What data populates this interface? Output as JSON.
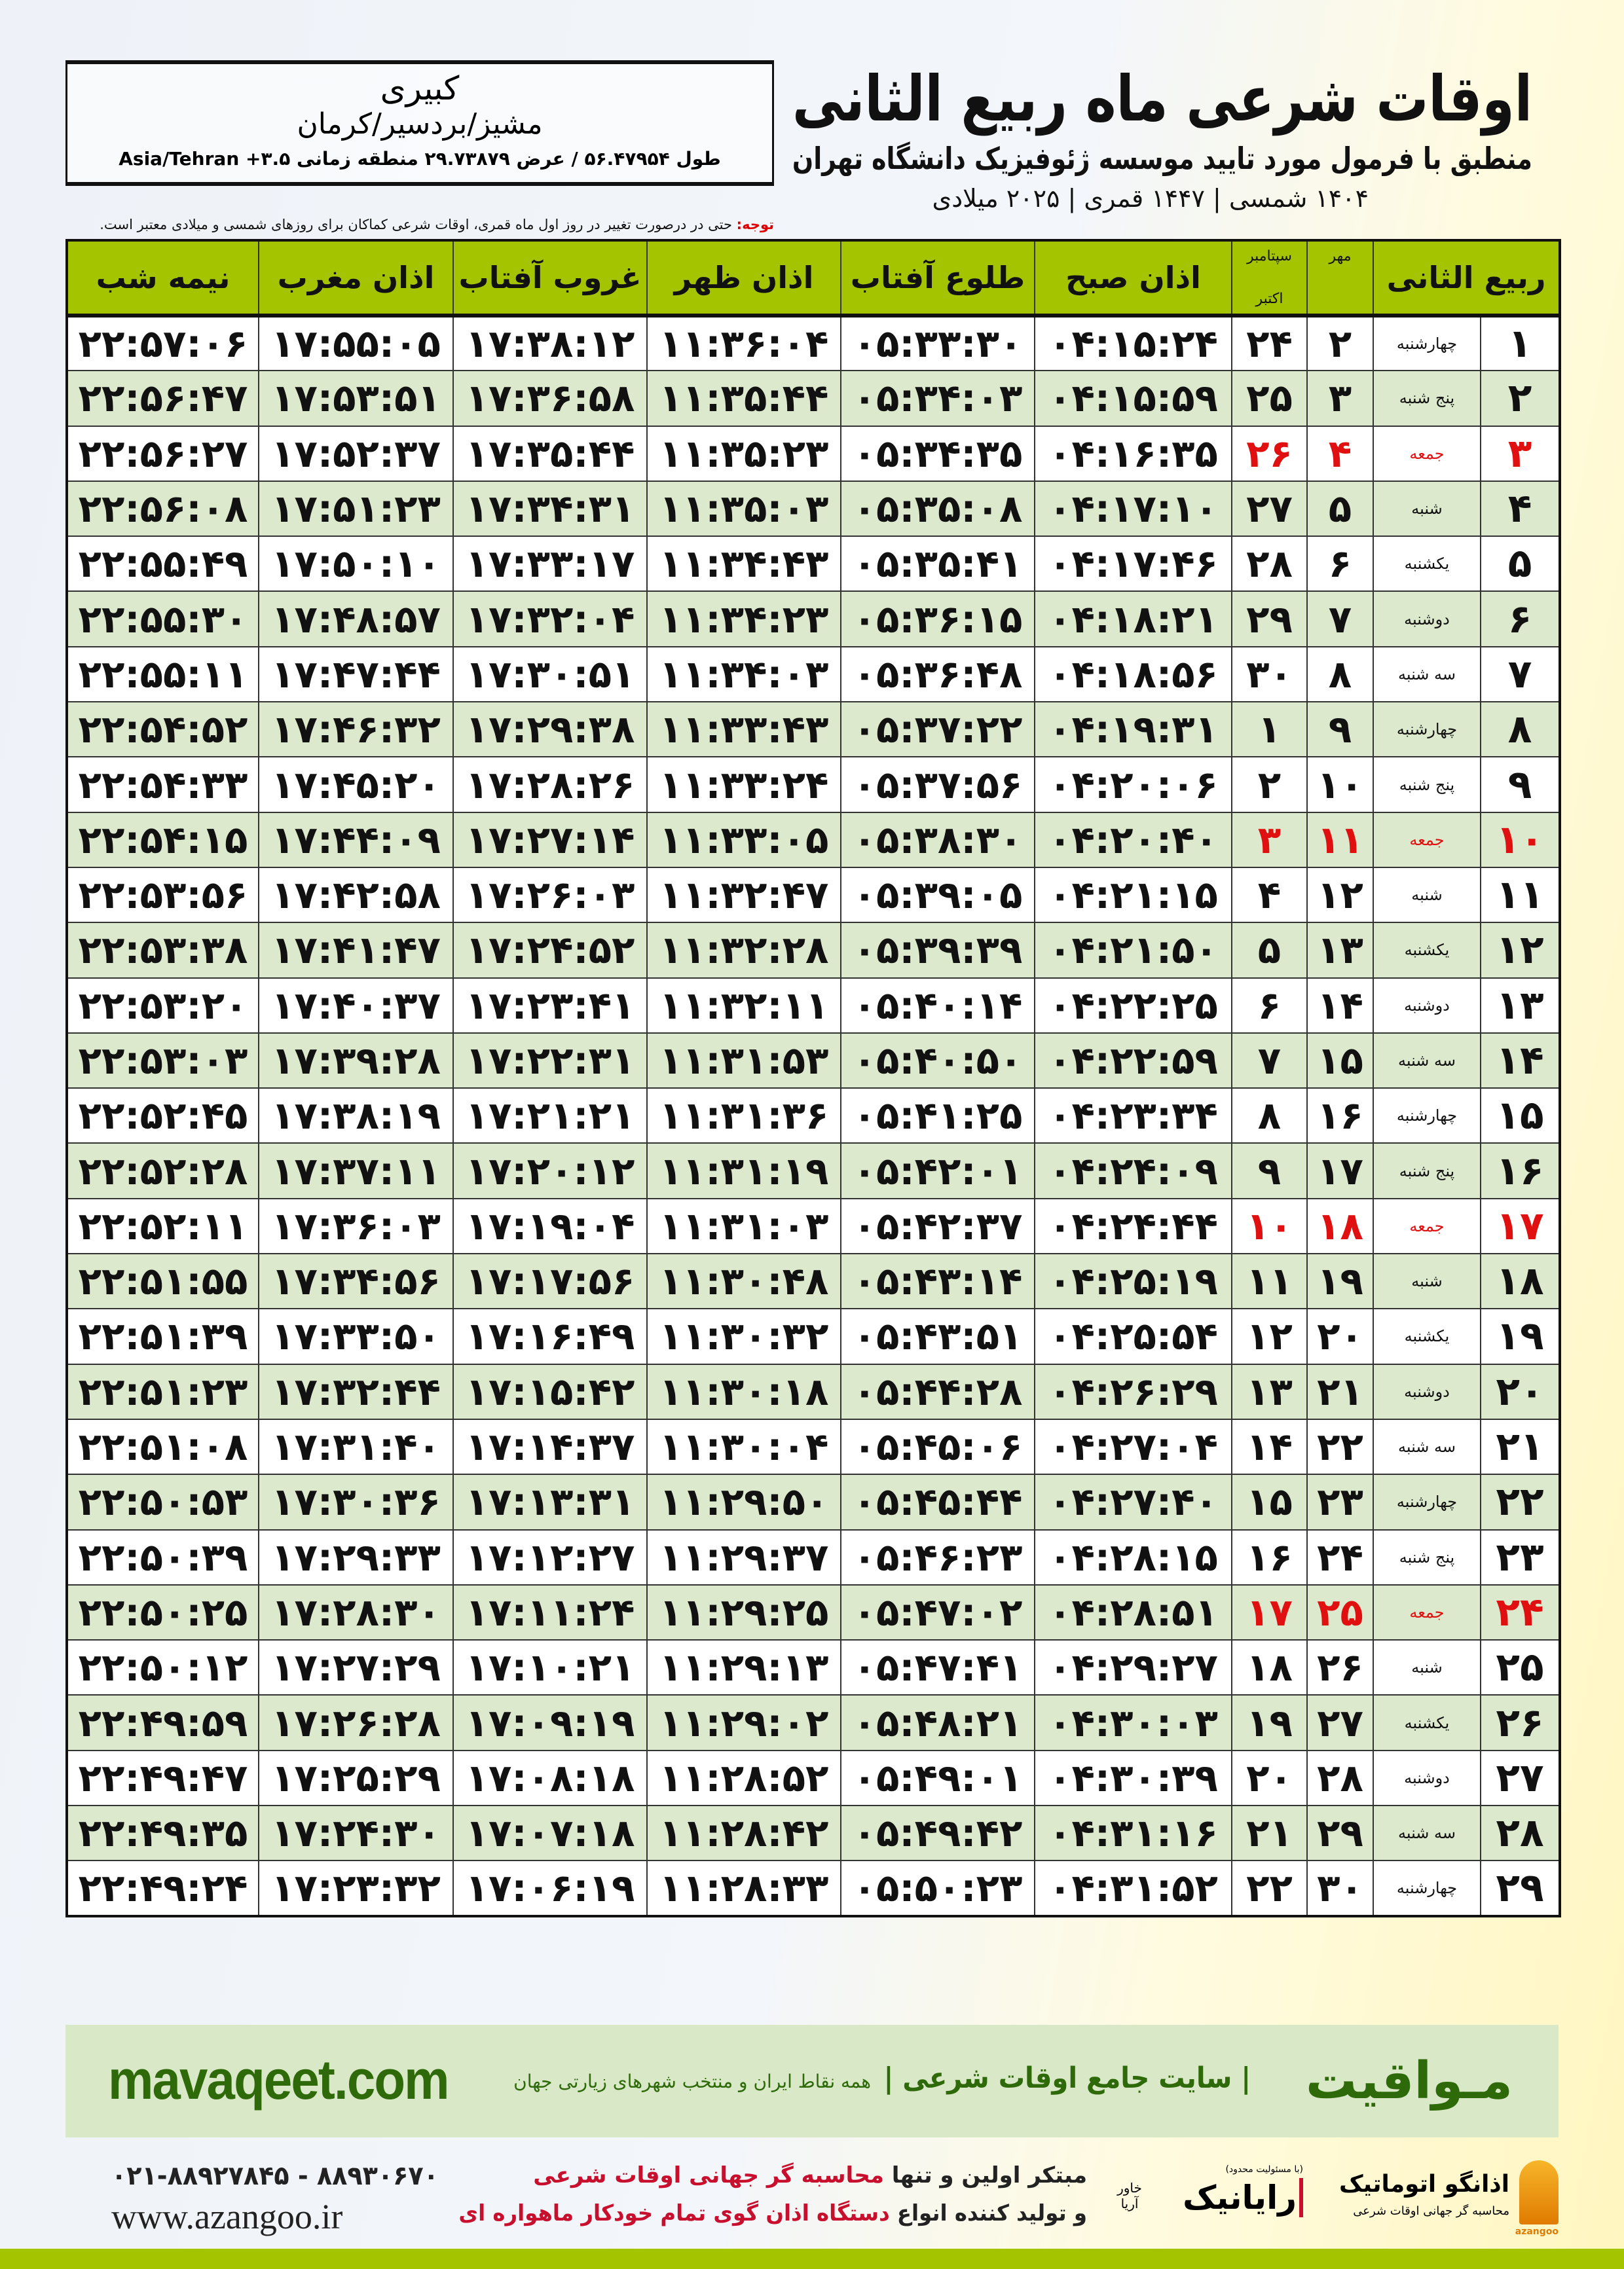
{
  "header": {
    "title": "اوقات شرعی ماه ربیع الثانی",
    "subtitle": "منطبق با فرمول مورد تایید موسسه ژئوفیزیک دانشگاه تهران",
    "dates": "۱۴۰۴ شمسی | ۱۴۴۷ قمری | ۲۰۲۵ میلادی"
  },
  "location": {
    "city": "کبیری",
    "region": "مشیز/بردسیر/کرمان",
    "coords": "طول ۵۶.۴۷۹۵۴ / عرض ۲۹.۷۳۸۷۹ منطقه زمانی ۳.۵+ Asia/Tehran"
  },
  "note": {
    "label": "توجه:",
    "text": " حتی در درصورت تغییر در روز اول ماه قمری، اوقات شرعی کماکان برای روزهای شمسی و میلادی معتبر است."
  },
  "table": {
    "headers": {
      "day": "ربیع الثانی",
      "mehr": "مهر",
      "greg1": "سپتامبر",
      "greg2": "اکتبر",
      "fajr": "اذان صبح",
      "sunrise": "طلوع آفتاب",
      "dhuhr": "اذان ظهر",
      "sunset": "غروب آفتاب",
      "maghrib": "اذان مغرب",
      "midnight": "نیمه شب"
    },
    "rows": [
      {
        "day": "۱",
        "weekday": "چهارشنبه",
        "mehr": "۲",
        "greg": "۲۴",
        "fajr": "۰۴:۱۵:۲۴",
        "sunrise": "۰۵:۳۳:۳۰",
        "dhuhr": "۱۱:۳۶:۰۴",
        "sunset": "۱۷:۳۸:۱۲",
        "maghrib": "۱۷:۵۵:۰۵",
        "midnight": "۲۲:۵۷:۰۶",
        "friday": false
      },
      {
        "day": "۲",
        "weekday": "پنج شنبه",
        "mehr": "۳",
        "greg": "۲۵",
        "fajr": "۰۴:۱۵:۵۹",
        "sunrise": "۰۵:۳۴:۰۳",
        "dhuhr": "۱۱:۳۵:۴۴",
        "sunset": "۱۷:۳۶:۵۸",
        "maghrib": "۱۷:۵۳:۵۱",
        "midnight": "۲۲:۵۶:۴۷",
        "friday": false
      },
      {
        "day": "۳",
        "weekday": "جمعه",
        "mehr": "۴",
        "greg": "۲۶",
        "fajr": "۰۴:۱۶:۳۵",
        "sunrise": "۰۵:۳۴:۳۵",
        "dhuhr": "۱۱:۳۵:۲۳",
        "sunset": "۱۷:۳۵:۴۴",
        "maghrib": "۱۷:۵۲:۳۷",
        "midnight": "۲۲:۵۶:۲۷",
        "friday": true
      },
      {
        "day": "۴",
        "weekday": "شنبه",
        "mehr": "۵",
        "greg": "۲۷",
        "fajr": "۰۴:۱۷:۱۰",
        "sunrise": "۰۵:۳۵:۰۸",
        "dhuhr": "۱۱:۳۵:۰۳",
        "sunset": "۱۷:۳۴:۳۱",
        "maghrib": "۱۷:۵۱:۲۳",
        "midnight": "۲۲:۵۶:۰۸",
        "friday": false
      },
      {
        "day": "۵",
        "weekday": "یکشنبه",
        "mehr": "۶",
        "greg": "۲۸",
        "fajr": "۰۴:۱۷:۴۶",
        "sunrise": "۰۵:۳۵:۴۱",
        "dhuhr": "۱۱:۳۴:۴۳",
        "sunset": "۱۷:۳۳:۱۷",
        "maghrib": "۱۷:۵۰:۱۰",
        "midnight": "۲۲:۵۵:۴۹",
        "friday": false
      },
      {
        "day": "۶",
        "weekday": "دوشنبه",
        "mehr": "۷",
        "greg": "۲۹",
        "fajr": "۰۴:۱۸:۲۱",
        "sunrise": "۰۵:۳۶:۱۵",
        "dhuhr": "۱۱:۳۴:۲۳",
        "sunset": "۱۷:۳۲:۰۴",
        "maghrib": "۱۷:۴۸:۵۷",
        "midnight": "۲۲:۵۵:۳۰",
        "friday": false
      },
      {
        "day": "۷",
        "weekday": "سه شنبه",
        "mehr": "۸",
        "greg": "۳۰",
        "fajr": "۰۴:۱۸:۵۶",
        "sunrise": "۰۵:۳۶:۴۸",
        "dhuhr": "۱۱:۳۴:۰۳",
        "sunset": "۱۷:۳۰:۵۱",
        "maghrib": "۱۷:۴۷:۴۴",
        "midnight": "۲۲:۵۵:۱۱",
        "friday": false
      },
      {
        "day": "۸",
        "weekday": "چهارشنبه",
        "mehr": "۹",
        "greg": "۱",
        "fajr": "۰۴:۱۹:۳۱",
        "sunrise": "۰۵:۳۷:۲۲",
        "dhuhr": "۱۱:۳۳:۴۳",
        "sunset": "۱۷:۲۹:۳۸",
        "maghrib": "۱۷:۴۶:۳۲",
        "midnight": "۲۲:۵۴:۵۲",
        "friday": false
      },
      {
        "day": "۹",
        "weekday": "پنج شنبه",
        "mehr": "۱۰",
        "greg": "۲",
        "fajr": "۰۴:۲۰:۰۶",
        "sunrise": "۰۵:۳۷:۵۶",
        "dhuhr": "۱۱:۳۳:۲۴",
        "sunset": "۱۷:۲۸:۲۶",
        "maghrib": "۱۷:۴۵:۲۰",
        "midnight": "۲۲:۵۴:۳۳",
        "friday": false
      },
      {
        "day": "۱۰",
        "weekday": "جمعه",
        "mehr": "۱۱",
        "greg": "۳",
        "fajr": "۰۴:۲۰:۴۰",
        "sunrise": "۰۵:۳۸:۳۰",
        "dhuhr": "۱۱:۳۳:۰۵",
        "sunset": "۱۷:۲۷:۱۴",
        "maghrib": "۱۷:۴۴:۰۹",
        "midnight": "۲۲:۵۴:۱۵",
        "friday": true
      },
      {
        "day": "۱۱",
        "weekday": "شنبه",
        "mehr": "۱۲",
        "greg": "۴",
        "fajr": "۰۴:۲۱:۱۵",
        "sunrise": "۰۵:۳۹:۰۵",
        "dhuhr": "۱۱:۳۲:۴۷",
        "sunset": "۱۷:۲۶:۰۳",
        "maghrib": "۱۷:۴۲:۵۸",
        "midnight": "۲۲:۵۳:۵۶",
        "friday": false
      },
      {
        "day": "۱۲",
        "weekday": "یکشنبه",
        "mehr": "۱۳",
        "greg": "۵",
        "fajr": "۰۴:۲۱:۵۰",
        "sunrise": "۰۵:۳۹:۳۹",
        "dhuhr": "۱۱:۳۲:۲۸",
        "sunset": "۱۷:۲۴:۵۲",
        "maghrib": "۱۷:۴۱:۴۷",
        "midnight": "۲۲:۵۳:۳۸",
        "friday": false
      },
      {
        "day": "۱۳",
        "weekday": "دوشنبه",
        "mehr": "۱۴",
        "greg": "۶",
        "fajr": "۰۴:۲۲:۲۵",
        "sunrise": "۰۵:۴۰:۱۴",
        "dhuhr": "۱۱:۳۲:۱۱",
        "sunset": "۱۷:۲۳:۴۱",
        "maghrib": "۱۷:۴۰:۳۷",
        "midnight": "۲۲:۵۳:۲۰",
        "friday": false
      },
      {
        "day": "۱۴",
        "weekday": "سه شنبه",
        "mehr": "۱۵",
        "greg": "۷",
        "fajr": "۰۴:۲۲:۵۹",
        "sunrise": "۰۵:۴۰:۵۰",
        "dhuhr": "۱۱:۳۱:۵۳",
        "sunset": "۱۷:۲۲:۳۱",
        "maghrib": "۱۷:۳۹:۲۸",
        "midnight": "۲۲:۵۳:۰۳",
        "friday": false
      },
      {
        "day": "۱۵",
        "weekday": "چهارشنبه",
        "mehr": "۱۶",
        "greg": "۸",
        "fajr": "۰۴:۲۳:۳۴",
        "sunrise": "۰۵:۴۱:۲۵",
        "dhuhr": "۱۱:۳۱:۳۶",
        "sunset": "۱۷:۲۱:۲۱",
        "maghrib": "۱۷:۳۸:۱۹",
        "midnight": "۲۲:۵۲:۴۵",
        "friday": false
      },
      {
        "day": "۱۶",
        "weekday": "پنج شنبه",
        "mehr": "۱۷",
        "greg": "۹",
        "fajr": "۰۴:۲۴:۰۹",
        "sunrise": "۰۵:۴۲:۰۱",
        "dhuhr": "۱۱:۳۱:۱۹",
        "sunset": "۱۷:۲۰:۱۲",
        "maghrib": "۱۷:۳۷:۱۱",
        "midnight": "۲۲:۵۲:۲۸",
        "friday": false
      },
      {
        "day": "۱۷",
        "weekday": "جمعه",
        "mehr": "۱۸",
        "greg": "۱۰",
        "fajr": "۰۴:۲۴:۴۴",
        "sunrise": "۰۵:۴۲:۳۷",
        "dhuhr": "۱۱:۳۱:۰۳",
        "sunset": "۱۷:۱۹:۰۴",
        "maghrib": "۱۷:۳۶:۰۳",
        "midnight": "۲۲:۵۲:۱۱",
        "friday": true
      },
      {
        "day": "۱۸",
        "weekday": "شنبه",
        "mehr": "۱۹",
        "greg": "۱۱",
        "fajr": "۰۴:۲۵:۱۹",
        "sunrise": "۰۵:۴۳:۱۴",
        "dhuhr": "۱۱:۳۰:۴۸",
        "sunset": "۱۷:۱۷:۵۶",
        "maghrib": "۱۷:۳۴:۵۶",
        "midnight": "۲۲:۵۱:۵۵",
        "friday": false
      },
      {
        "day": "۱۹",
        "weekday": "یکشنبه",
        "mehr": "۲۰",
        "greg": "۱۲",
        "fajr": "۰۴:۲۵:۵۴",
        "sunrise": "۰۵:۴۳:۵۱",
        "dhuhr": "۱۱:۳۰:۳۲",
        "sunset": "۱۷:۱۶:۴۹",
        "maghrib": "۱۷:۳۳:۵۰",
        "midnight": "۲۲:۵۱:۳۹",
        "friday": false
      },
      {
        "day": "۲۰",
        "weekday": "دوشنبه",
        "mehr": "۲۱",
        "greg": "۱۳",
        "fajr": "۰۴:۲۶:۲۹",
        "sunrise": "۰۵:۴۴:۲۸",
        "dhuhr": "۱۱:۳۰:۱۸",
        "sunset": "۱۷:۱۵:۴۲",
        "maghrib": "۱۷:۳۲:۴۴",
        "midnight": "۲۲:۵۱:۲۳",
        "friday": false
      },
      {
        "day": "۲۱",
        "weekday": "سه شنبه",
        "mehr": "۲۲",
        "greg": "۱۴",
        "fajr": "۰۴:۲۷:۰۴",
        "sunrise": "۰۵:۴۵:۰۶",
        "dhuhr": "۱۱:۳۰:۰۴",
        "sunset": "۱۷:۱۴:۳۷",
        "maghrib": "۱۷:۳۱:۴۰",
        "midnight": "۲۲:۵۱:۰۸",
        "friday": false
      },
      {
        "day": "۲۲",
        "weekday": "چهارشنبه",
        "mehr": "۲۳",
        "greg": "۱۵",
        "fajr": "۰۴:۲۷:۴۰",
        "sunrise": "۰۵:۴۵:۴۴",
        "dhuhr": "۱۱:۲۹:۵۰",
        "sunset": "۱۷:۱۳:۳۱",
        "maghrib": "۱۷:۳۰:۳۶",
        "midnight": "۲۲:۵۰:۵۳",
        "friday": false
      },
      {
        "day": "۲۳",
        "weekday": "پنج شنبه",
        "mehr": "۲۴",
        "greg": "۱۶",
        "fajr": "۰۴:۲۸:۱۵",
        "sunrise": "۰۵:۴۶:۲۳",
        "dhuhr": "۱۱:۲۹:۳۷",
        "sunset": "۱۷:۱۲:۲۷",
        "maghrib": "۱۷:۲۹:۳۳",
        "midnight": "۲۲:۵۰:۳۹",
        "friday": false
      },
      {
        "day": "۲۴",
        "weekday": "جمعه",
        "mehr": "۲۵",
        "greg": "۱۷",
        "fajr": "۰۴:۲۸:۵۱",
        "sunrise": "۰۵:۴۷:۰۲",
        "dhuhr": "۱۱:۲۹:۲۵",
        "sunset": "۱۷:۱۱:۲۴",
        "maghrib": "۱۷:۲۸:۳۰",
        "midnight": "۲۲:۵۰:۲۵",
        "friday": true
      },
      {
        "day": "۲۵",
        "weekday": "شنبه",
        "mehr": "۲۶",
        "greg": "۱۸",
        "fajr": "۰۴:۲۹:۲۷",
        "sunrise": "۰۵:۴۷:۴۱",
        "dhuhr": "۱۱:۲۹:۱۳",
        "sunset": "۱۷:۱۰:۲۱",
        "maghrib": "۱۷:۲۷:۲۹",
        "midnight": "۲۲:۵۰:۱۲",
        "friday": false
      },
      {
        "day": "۲۶",
        "weekday": "یکشنبه",
        "mehr": "۲۷",
        "greg": "۱۹",
        "fajr": "۰۴:۳۰:۰۳",
        "sunrise": "۰۵:۴۸:۲۱",
        "dhuhr": "۱۱:۲۹:۰۲",
        "sunset": "۱۷:۰۹:۱۹",
        "maghrib": "۱۷:۲۶:۲۸",
        "midnight": "۲۲:۴۹:۵۹",
        "friday": false
      },
      {
        "day": "۲۷",
        "weekday": "دوشنبه",
        "mehr": "۲۸",
        "greg": "۲۰",
        "fajr": "۰۴:۳۰:۳۹",
        "sunrise": "۰۵:۴۹:۰۱",
        "dhuhr": "۱۱:۲۸:۵۲",
        "sunset": "۱۷:۰۸:۱۸",
        "maghrib": "۱۷:۲۵:۲۹",
        "midnight": "۲۲:۴۹:۴۷",
        "friday": false
      },
      {
        "day": "۲۸",
        "weekday": "سه شنبه",
        "mehr": "۲۹",
        "greg": "۲۱",
        "fajr": "۰۴:۳۱:۱۶",
        "sunrise": "۰۵:۴۹:۴۲",
        "dhuhr": "۱۱:۲۸:۴۲",
        "sunset": "۱۷:۰۷:۱۸",
        "maghrib": "۱۷:۲۴:۳۰",
        "midnight": "۲۲:۴۹:۳۵",
        "friday": false
      },
      {
        "day": "۲۹",
        "weekday": "چهارشنبه",
        "mehr": "۳۰",
        "greg": "۲۲",
        "fajr": "۰۴:۳۱:۵۲",
        "sunrise": "۰۵:۵۰:۲۳",
        "dhuhr": "۱۱:۲۸:۳۳",
        "sunset": "۱۷:۰۶:۱۹",
        "maghrib": "۱۷:۲۳:۳۲",
        "midnight": "۲۲:۴۹:۲۴",
        "friday": false
      }
    ]
  },
  "footer": {
    "brand": "مـواقیت",
    "brand_sub": "| سایت جامع اوقات شرعی |",
    "brand_sub2": "همه نقاط ایران و منتخب شهرهای زیارتی جهان",
    "site": "mavaqeet.com",
    "phones": "۰۲۱-۸۸۹۲۷۸۴۵ - ۸۸۹۳۰۶۷۰",
    "www": "www.azangoo.ir",
    "promo1_a": "مبتکر اولین و تنها ",
    "promo1_b": "محاسبه گر جهانی اوقات شرعی",
    "promo2_a": "و تولید کننده انواع ",
    "promo2_b": "دستگاه اذان گوی تمام خودکار ماهواره ای",
    "logo_azangoo": "اذانگو اتوماتیک",
    "logo_azangoo_sub": "محاسبه گر جهانی اوقات شرعی",
    "logo_azangoo_en": "azangoo",
    "logo_rayanik": "رایانیک",
    "logo_rayanik_sub": "خاور آریا",
    "logo_rayanik_note": "(با مسئولیت محدود)"
  },
  "colors": {
    "header_green": "#a4c400",
    "row_green": "#dde9cd",
    "friday_red": "#e01010",
    "brand_green": "#2f6a0a",
    "band": "#d9e8c6"
  }
}
